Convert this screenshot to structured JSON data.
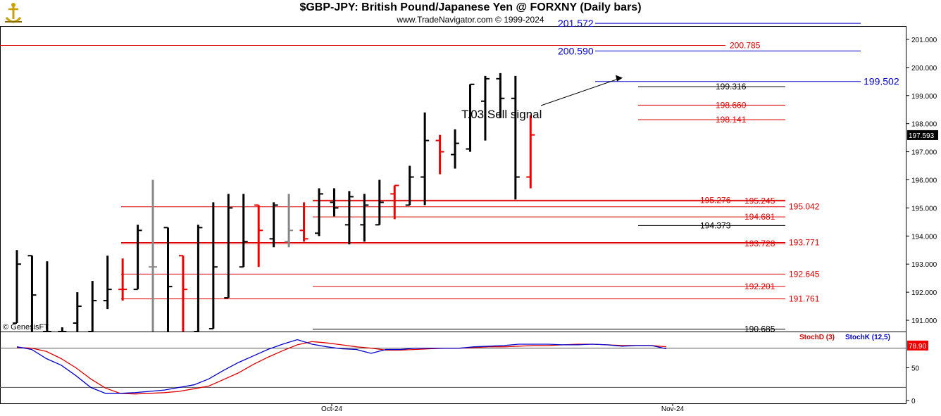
{
  "header": {
    "title": "$GBP-JPY:  British Pound/Japanese Yen @ FORXNY  (Daily bars)",
    "subtitle": "www.TradeNavigator.com © 1999-2024"
  },
  "colors": {
    "up_bar": "#000000",
    "down_bar": "#ee0000",
    "neutral_bar": "#888888",
    "red_level": "#dd0000",
    "blue_level": "#0000cc",
    "stoch_d": "#dd0000",
    "stoch_k": "#0000cc"
  },
  "watermark": "© GenesisFT",
  "chart_data": [
    {
      "type": "ohlc",
      "ylim": [
        190.6,
        201.45
      ],
      "y_ticks": [
        "191.000",
        "192.000",
        "193.000",
        "194.000",
        "195.000",
        "196.000",
        "197.000",
        "198.000",
        "199.000",
        "200.000",
        "201.000"
      ],
      "x_labels": [
        "Oct-24",
        "Nov-24"
      ],
      "last_price": "197.593",
      "annotation": "T.03 Sell signal",
      "bars": [
        {
          "o": 190.9,
          "h": 193.5,
          "l": 190.9,
          "c": 193.0,
          "color": "up"
        },
        {
          "o": 193.3,
          "h": 193.3,
          "l": 190.6,
          "c": 191.9,
          "color": "up"
        },
        {
          "o": 190.6,
          "h": 193.1,
          "l": 190.6,
          "c": 190.6,
          "color": "up"
        },
        {
          "o": 190.6,
          "h": 190.75,
          "l": 190.6,
          "c": 190.6,
          "color": "up"
        },
        {
          "o": 190.9,
          "h": 192.0,
          "l": 190.6,
          "c": 191.5,
          "color": "up"
        },
        {
          "o": 190.6,
          "h": 192.4,
          "l": 190.6,
          "c": 191.7,
          "color": "up"
        },
        {
          "o": 191.7,
          "h": 193.3,
          "l": 191.4,
          "c": 192.1,
          "color": "up"
        },
        {
          "o": 192.1,
          "h": 193.2,
          "l": 191.7,
          "c": 192.1,
          "color": "down"
        },
        {
          "o": 192.1,
          "h": 194.4,
          "l": 192.1,
          "c": 194.2,
          "color": "up"
        },
        {
          "o": 192.9,
          "h": 196.0,
          "l": 190.6,
          "c": 192.9,
          "color": "neutral"
        },
        {
          "o": 194.3,
          "h": 194.3,
          "l": 190.6,
          "c": 192.2,
          "color": "up"
        },
        {
          "o": 193.3,
          "h": 193.3,
          "l": 190.6,
          "c": 192.1,
          "color": "down"
        },
        {
          "o": 190.6,
          "h": 194.4,
          "l": 190.6,
          "c": 194.3,
          "color": "up"
        },
        {
          "o": 190.7,
          "h": 195.2,
          "l": 190.7,
          "c": 192.9,
          "color": "up"
        },
        {
          "o": 191.8,
          "h": 195.5,
          "l": 191.8,
          "c": 195.0,
          "color": "up"
        },
        {
          "o": 192.9,
          "h": 195.5,
          "l": 192.9,
          "c": 193.8,
          "color": "up"
        },
        {
          "o": 195.1,
          "h": 195.1,
          "l": 192.9,
          "c": 194.2,
          "color": "down"
        },
        {
          "o": 193.9,
          "h": 195.2,
          "l": 193.6,
          "c": 195.1,
          "color": "up"
        },
        {
          "o": 193.8,
          "h": 195.5,
          "l": 193.6,
          "c": 194.2,
          "color": "neutral"
        },
        {
          "o": 194.2,
          "h": 195.2,
          "l": 193.8,
          "c": 193.9,
          "color": "down"
        },
        {
          "o": 194.1,
          "h": 195.7,
          "l": 194.0,
          "c": 195.5,
          "color": "up"
        },
        {
          "o": 195.2,
          "h": 195.7,
          "l": 194.7,
          "c": 195.0,
          "color": "up"
        },
        {
          "o": 194.4,
          "h": 195.6,
          "l": 193.7,
          "c": 195.4,
          "color": "up"
        },
        {
          "o": 194.4,
          "h": 195.5,
          "l": 193.8,
          "c": 195.1,
          "color": "up"
        },
        {
          "o": 194.4,
          "h": 196.0,
          "l": 194.4,
          "c": 195.2,
          "color": "up"
        },
        {
          "o": 195.5,
          "h": 195.8,
          "l": 194.6,
          "c": 195.8,
          "color": "down"
        },
        {
          "o": 195.1,
          "h": 196.5,
          "l": 195.1,
          "c": 196.1,
          "color": "up"
        },
        {
          "o": 196.1,
          "h": 198.4,
          "l": 195.1,
          "c": 197.4,
          "color": "up"
        },
        {
          "o": 197.4,
          "h": 197.6,
          "l": 196.2,
          "c": 197.0,
          "color": "down"
        },
        {
          "o": 196.9,
          "h": 197.8,
          "l": 196.4,
          "c": 197.3,
          "color": "up"
        },
        {
          "o": 197.1,
          "h": 199.4,
          "l": 197.0,
          "c": 199.4,
          "color": "up"
        },
        {
          "o": 198.8,
          "h": 199.7,
          "l": 197.4,
          "c": 199.6,
          "color": "up"
        },
        {
          "o": 199.6,
          "h": 199.8,
          "l": 198.2,
          "c": 198.9,
          "color": "up"
        },
        {
          "o": 198.9,
          "h": 199.7,
          "l": 195.3,
          "c": 196.1,
          "color": "up"
        },
        {
          "o": 196.1,
          "h": 198.3,
          "l": 195.7,
          "c": 197.6,
          "color": "down"
        }
      ],
      "levels": [
        {
          "value": 200.785,
          "label": "200.785",
          "color": "red",
          "span": "full"
        },
        {
          "value": 199.316,
          "label": "199.316",
          "color": "black",
          "span": "recent"
        },
        {
          "value": 198.66,
          "label": "198.660",
          "color": "red",
          "span": "recent"
        },
        {
          "value": 198.141,
          "label": "198.141",
          "color": "red",
          "span": "recent"
        },
        {
          "value": 195.276,
          "label": "195.276",
          "color": "red",
          "span": "mid"
        },
        {
          "value": 195.245,
          "label": "195.245",
          "color": "red",
          "span": "mid"
        },
        {
          "value": 195.042,
          "label": "195.042",
          "color": "red",
          "span": "wide"
        },
        {
          "value": 194.681,
          "label": "194.681",
          "color": "red",
          "span": "mid"
        },
        {
          "value": 194.373,
          "label": "194.373",
          "color": "black",
          "span": "recent"
        },
        {
          "value": 193.771,
          "label": "193.771",
          "color": "red",
          "span": "wide"
        },
        {
          "value": 193.728,
          "label": "193.728",
          "color": "red",
          "span": "wide"
        },
        {
          "value": 192.645,
          "label": "192.645",
          "color": "red",
          "span": "wide"
        },
        {
          "value": 192.201,
          "label": "192.201",
          "color": "red",
          "span": "mid"
        },
        {
          "value": 191.761,
          "label": "191.761",
          "color": "red",
          "span": "wide"
        },
        {
          "value": 190.685,
          "label": "190.685",
          "color": "black",
          "span": "mid"
        }
      ],
      "targets": [
        {
          "value": 201.572,
          "label": "201.572"
        },
        {
          "value": 200.59,
          "label": "200.590"
        },
        {
          "value": 199.502,
          "label": "199.502"
        }
      ]
    },
    {
      "type": "line",
      "ylim": [
        0,
        100
      ],
      "y_ticks": [
        "0",
        "50"
      ],
      "series_label_d": "StochD (3)",
      "series_label_k": "StochK (12,5)",
      "last_value": "78.90",
      "series": [
        {
          "name": "StochD (3)",
          "values": [
            81,
            80,
            75,
            64,
            50,
            33,
            19,
            11,
            10,
            11,
            12,
            14,
            18,
            22,
            32,
            42,
            55,
            66,
            76,
            85,
            90,
            88,
            85,
            82,
            80,
            77,
            77,
            78,
            79,
            80,
            80,
            81,
            82,
            82,
            83,
            84,
            84,
            85,
            86,
            86,
            85,
            84,
            84,
            84,
            82
          ]
        },
        {
          "name": "StochK (12,5)",
          "values": [
            82,
            78,
            64,
            54,
            38,
            20,
            11,
            11,
            12,
            14,
            16,
            20,
            24,
            33,
            46,
            58,
            68,
            78,
            86,
            93,
            86,
            82,
            79,
            78,
            72,
            78,
            78,
            80,
            80,
            80,
            80,
            82,
            83,
            84,
            86,
            86,
            86,
            85,
            85,
            86,
            85,
            83,
            84,
            84,
            79
          ]
        }
      ]
    }
  ]
}
